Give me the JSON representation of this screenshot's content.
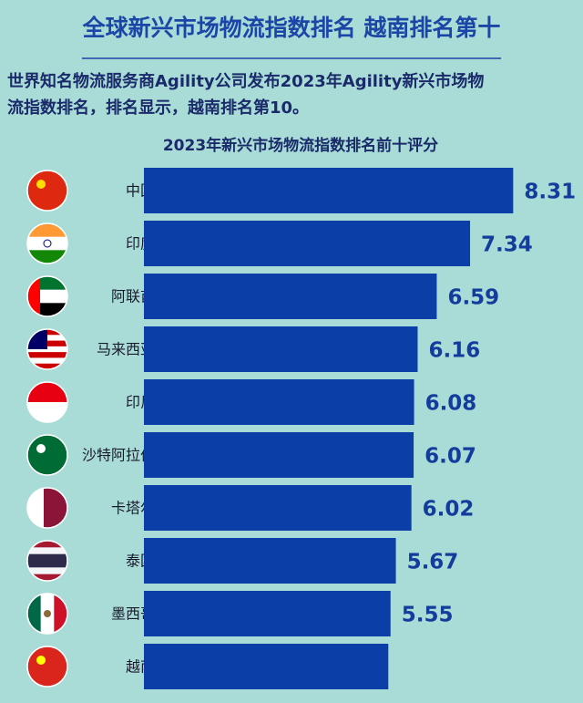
{
  "header": {
    "title": "全球新兴市场物流指数排名  越南排名第十",
    "subtitle_lines": [
      "世界知名物流服务商Agility公司发布2023年Agility新兴市场物",
      "流指数排名，排名显示，越南排名第10。"
    ]
  },
  "chart_data": {
    "type": "hbar",
    "title": "2023年新兴市场物流指数排名前十评分",
    "categories": [
      "中国",
      "印度",
      "阿联酋",
      "马来西亚",
      "印尼",
      "沙特阿拉伯",
      "卡塔尔",
      "泰国",
      "墨西哥",
      "越南"
    ],
    "values": [
      8.31,
      7.34,
      6.59,
      6.16,
      6.08,
      6.07,
      6.02,
      5.67,
      5.55,
      5.5
    ],
    "value_labels": [
      "8.31",
      "7.34",
      "6.59",
      "6.16",
      "6.08",
      "6.07",
      "6.02",
      "5.67",
      "5.55",
      null
    ],
    "color": "#0b3ea6",
    "xlim": [
      0,
      9
    ]
  }
}
